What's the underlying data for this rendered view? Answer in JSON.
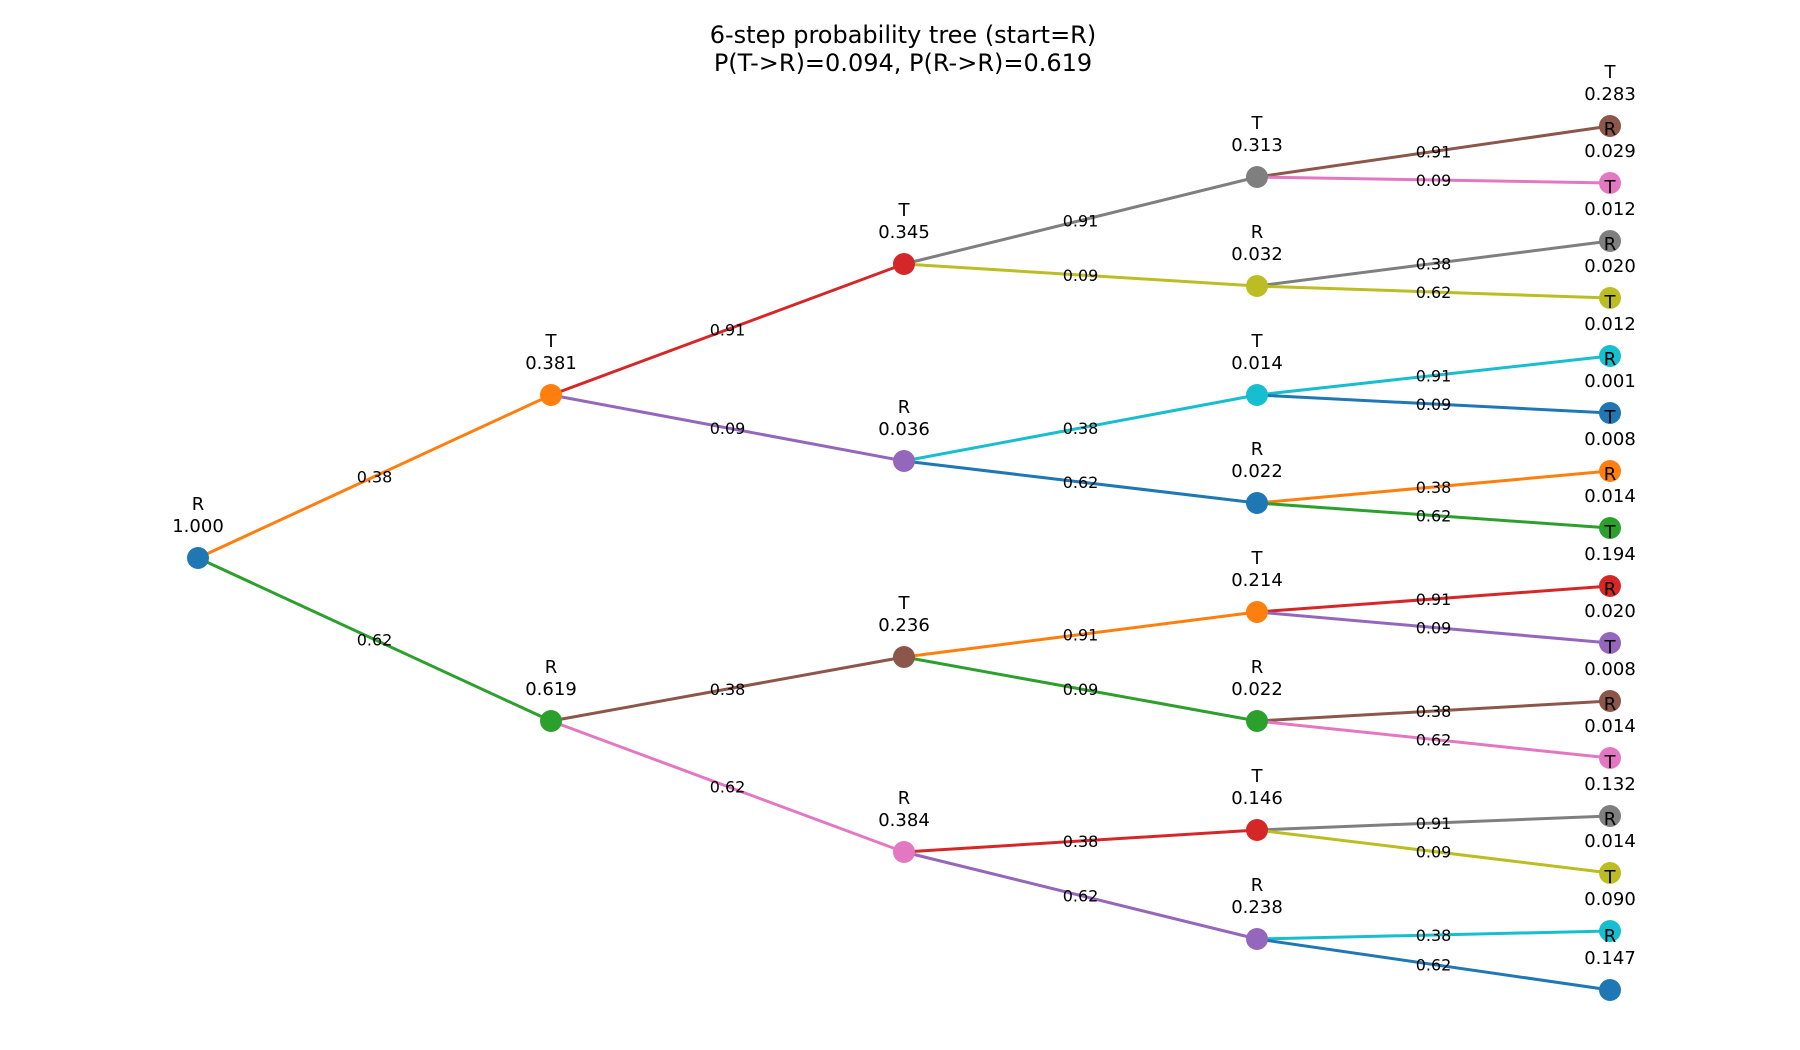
{
  "title": {
    "line1": "6-step probability tree (start=R)",
    "line2": "P(T->R)=0.094, P(R->R)=0.619"
  },
  "nodes": [
    {
      "id": "n0",
      "state": "R",
      "prob": "1.000",
      "color": "#1f77b4"
    },
    {
      "id": "n1",
      "state": "T",
      "prob": "0.381",
      "color": "#ff7f0e"
    },
    {
      "id": "n2",
      "state": "R",
      "prob": "0.619",
      "color": "#2ca02c"
    },
    {
      "id": "n3",
      "state": "T",
      "prob": "0.345",
      "color": "#d62728"
    },
    {
      "id": "n4",
      "state": "R",
      "prob": "0.036",
      "color": "#9467bd"
    },
    {
      "id": "n5",
      "state": "T",
      "prob": "0.236",
      "color": "#8c564b"
    },
    {
      "id": "n6",
      "state": "R",
      "prob": "0.384",
      "color": "#e377c2"
    },
    {
      "id": "n7",
      "state": "T",
      "prob": "0.313",
      "color": "#7f7f7f"
    },
    {
      "id": "n8",
      "state": "R",
      "prob": "0.032",
      "color": "#bcbd22"
    },
    {
      "id": "n9",
      "state": "T",
      "prob": "0.014",
      "color": "#17becf"
    },
    {
      "id": "n10",
      "state": "R",
      "prob": "0.022",
      "color": "#1f77b4"
    },
    {
      "id": "n11",
      "state": "T",
      "prob": "0.214",
      "color": "#ff7f0e"
    },
    {
      "id": "n12",
      "state": "R",
      "prob": "0.022",
      "color": "#2ca02c"
    },
    {
      "id": "n13",
      "state": "T",
      "prob": "0.146",
      "color": "#d62728"
    },
    {
      "id": "n14",
      "state": "R",
      "prob": "0.238",
      "color": "#9467bd"
    },
    {
      "id": "n15",
      "state": "T",
      "prob": "0.283",
      "color": "#8c564b"
    },
    {
      "id": "n16",
      "state": "R",
      "prob": "0.029",
      "color": "#e377c2"
    },
    {
      "id": "n17",
      "state": "T",
      "prob": "0.012",
      "color": "#7f7f7f"
    },
    {
      "id": "n18",
      "state": "R",
      "prob": "0.020",
      "color": "#bcbd22"
    },
    {
      "id": "n19",
      "state": "T",
      "prob": "0.012",
      "color": "#17becf"
    },
    {
      "id": "n20",
      "state": "R",
      "prob": "0.001",
      "color": "#1f77b4"
    },
    {
      "id": "n21",
      "state": "T",
      "prob": "0.008",
      "color": "#ff7f0e"
    },
    {
      "id": "n22",
      "state": "R",
      "prob": "0.014",
      "color": "#2ca02c"
    },
    {
      "id": "n23",
      "state": "T",
      "prob": "0.194",
      "color": "#d62728"
    },
    {
      "id": "n24",
      "state": "R",
      "prob": "0.020",
      "color": "#9467bd"
    },
    {
      "id": "n25",
      "state": "T",
      "prob": "0.008",
      "color": "#8c564b"
    },
    {
      "id": "n26",
      "state": "R",
      "prob": "0.014",
      "color": "#e377c2"
    },
    {
      "id": "n27",
      "state": "T",
      "prob": "0.132",
      "color": "#7f7f7f"
    },
    {
      "id": "n28",
      "state": "R",
      "prob": "0.014",
      "color": "#bcbd22"
    },
    {
      "id": "n29",
      "state": "T",
      "prob": "0.090",
      "color": "#17becf"
    },
    {
      "id": "n30",
      "state": "R",
      "prob": "0.147",
      "color": "#1f77b4"
    }
  ],
  "edges": [
    {
      "from": "n0",
      "to": "n1",
      "p": "0.38",
      "color": "#ff7f0e"
    },
    {
      "from": "n0",
      "to": "n2",
      "p": "0.62",
      "color": "#2ca02c"
    },
    {
      "from": "n1",
      "to": "n3",
      "p": "0.91",
      "color": "#d62728"
    },
    {
      "from": "n1",
      "to": "n4",
      "p": "0.09",
      "color": "#9467bd"
    },
    {
      "from": "n2",
      "to": "n5",
      "p": "0.38",
      "color": "#8c564b"
    },
    {
      "from": "n2",
      "to": "n6",
      "p": "0.62",
      "color": "#e377c2"
    },
    {
      "from": "n3",
      "to": "n7",
      "p": "0.91",
      "color": "#7f7f7f"
    },
    {
      "from": "n3",
      "to": "n8",
      "p": "0.09",
      "color": "#bcbd22"
    },
    {
      "from": "n4",
      "to": "n9",
      "p": "0.38",
      "color": "#17becf"
    },
    {
      "from": "n4",
      "to": "n10",
      "p": "0.62",
      "color": "#1f77b4"
    },
    {
      "from": "n5",
      "to": "n11",
      "p": "0.91",
      "color": "#ff7f0e"
    },
    {
      "from": "n5",
      "to": "n12",
      "p": "0.09",
      "color": "#2ca02c"
    },
    {
      "from": "n6",
      "to": "n13",
      "p": "0.38",
      "color": "#d62728"
    },
    {
      "from": "n6",
      "to": "n14",
      "p": "0.62",
      "color": "#9467bd"
    },
    {
      "from": "n7",
      "to": "n15",
      "p": "0.91",
      "color": "#8c564b"
    },
    {
      "from": "n7",
      "to": "n16",
      "p": "0.09",
      "color": "#e377c2"
    },
    {
      "from": "n8",
      "to": "n17",
      "p": "0.38",
      "color": "#7f7f7f"
    },
    {
      "from": "n8",
      "to": "n18",
      "p": "0.62",
      "color": "#bcbd22"
    },
    {
      "from": "n9",
      "to": "n19",
      "p": "0.91",
      "color": "#17becf"
    },
    {
      "from": "n9",
      "to": "n20",
      "p": "0.09",
      "color": "#1f77b4"
    },
    {
      "from": "n10",
      "to": "n21",
      "p": "0.38",
      "color": "#ff7f0e"
    },
    {
      "from": "n10",
      "to": "n22",
      "p": "0.62",
      "color": "#2ca02c"
    },
    {
      "from": "n11",
      "to": "n23",
      "p": "0.91",
      "color": "#d62728"
    },
    {
      "from": "n11",
      "to": "n24",
      "p": "0.09",
      "color": "#9467bd"
    },
    {
      "from": "n12",
      "to": "n25",
      "p": "0.38",
      "color": "#8c564b"
    },
    {
      "from": "n12",
      "to": "n26",
      "p": "0.62",
      "color": "#e377c2"
    },
    {
      "from": "n13",
      "to": "n27",
      "p": "0.91",
      "color": "#7f7f7f"
    },
    {
      "from": "n13",
      "to": "n28",
      "p": "0.09",
      "color": "#bcbd22"
    },
    {
      "from": "n14",
      "to": "n29",
      "p": "0.38",
      "color": "#17becf"
    },
    {
      "from": "n14",
      "to": "n30",
      "p": "0.62",
      "color": "#1f77b4"
    }
  ]
}
